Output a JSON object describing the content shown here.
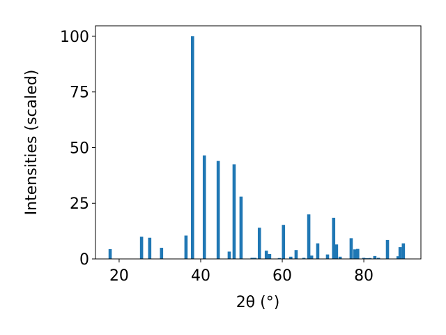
{
  "chart_data": {
    "type": "bar",
    "x_label": "2θ (°)",
    "y_label": "Intensities (scaled)",
    "x": [
      17.8,
      25.5,
      27.5,
      30.4,
      36.4,
      38.0,
      40.9,
      44.3,
      47.0,
      48.2,
      49.9,
      52.6,
      53.3,
      54.4,
      56.1,
      56.9,
      59.3,
      60.3,
      62.1,
      63.4,
      65.3,
      66.5,
      67.2,
      68.7,
      71.1,
      72.6,
      73.3,
      74.2,
      76.9,
      77.8,
      78.5,
      80.0,
      80.7,
      81.5,
      82.7,
      83.6,
      85.8,
      88.4,
      88.9,
      89.7
    ],
    "values": [
      4.4,
      10,
      9.5,
      5,
      10.5,
      100,
      46.5,
      44,
      3.3,
      42.5,
      28,
      0.5,
      0.5,
      14,
      3.7,
      2.2,
      0.4,
      15.3,
      1,
      4,
      0.5,
      20,
      1.5,
      7,
      2,
      18.5,
      6.5,
      1,
      9.3,
      4.3,
      4.5,
      0.5,
      0.3,
      0.4,
      1.3,
      0.5,
      8.5,
      1.2,
      5.3,
      7
    ],
    "color": "#1f77b4",
    "xlim": [
      14.2,
      94.0
    ],
    "xticks": [
      20,
      40,
      60,
      80
    ],
    "ylim": [
      0,
      104.7
    ],
    "yticks": [
      0,
      25,
      50,
      75,
      100
    ],
    "grid": false
  }
}
